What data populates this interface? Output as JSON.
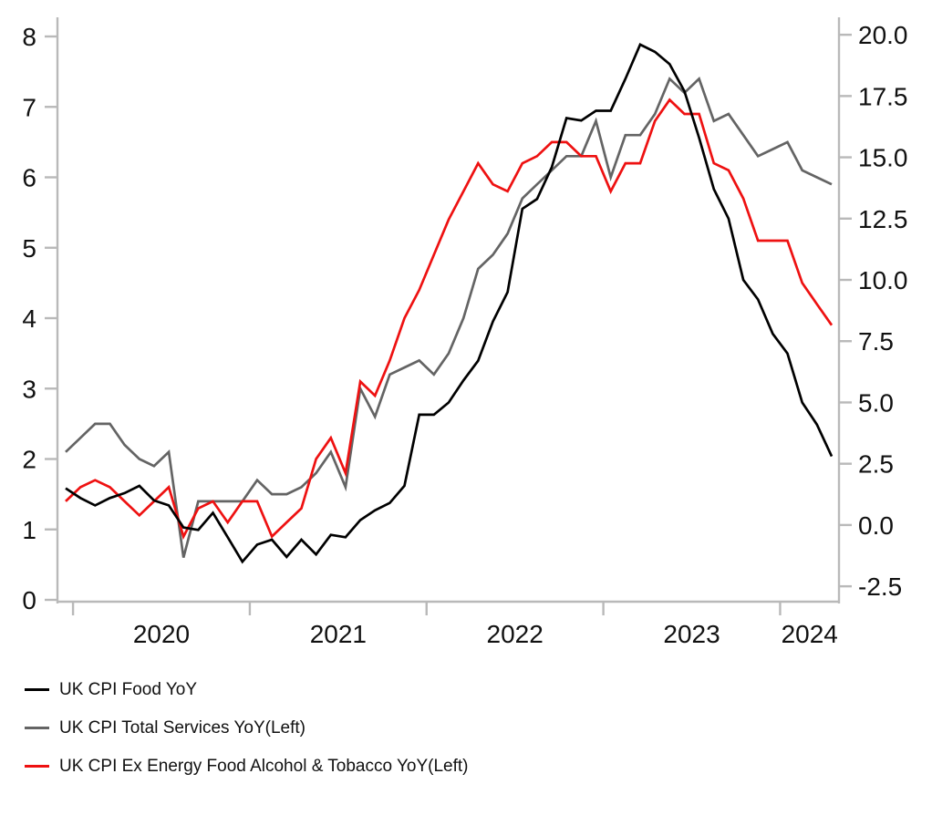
{
  "chart_data": {
    "type": "line",
    "title": "",
    "x_frequency": "monthly",
    "x_start": "2019-12",
    "x_end": "2024-04",
    "grid": "off",
    "legend_position": "bottom-left",
    "x_axis": {
      "tick_labels": [
        "2020",
        "2021",
        "2022",
        "2023",
        "2024"
      ]
    },
    "left_axis": {
      "min": 0,
      "max": 8,
      "tick_labels": [
        "0",
        "1",
        "2",
        "3",
        "4",
        "5",
        "6",
        "7",
        "8"
      ]
    },
    "right_axis": {
      "min": -2.5,
      "max": 20.0,
      "tick_labels": [
        "-2.5",
        "0.0",
        "2.5",
        "5.0",
        "7.5",
        "10.0",
        "12.5",
        "15.0",
        "17.5",
        "20.0"
      ]
    },
    "colors": {
      "axis": "#b9b9b9",
      "tick_text": "#111111",
      "background": "#ffffff"
    },
    "series": [
      {
        "name": "UK CPI Food YoY",
        "axis": "right",
        "color": "#000000",
        "values": [
          1.5,
          1.1,
          0.8,
          1.1,
          1.3,
          1.6,
          1.0,
          0.8,
          -0.1,
          -0.2,
          0.5,
          -0.5,
          -1.5,
          -0.8,
          -0.6,
          -1.3,
          -0.6,
          -1.2,
          -0.4,
          -0.5,
          0.2,
          0.6,
          0.9,
          1.6,
          4.5,
          4.5,
          5.0,
          5.9,
          6.7,
          8.3,
          9.5,
          12.9,
          13.3,
          14.6,
          16.6,
          16.5,
          16.9,
          16.9,
          18.2,
          19.6,
          19.3,
          18.8,
          17.7,
          15.8,
          13.7,
          12.5,
          10.0,
          9.2,
          7.8,
          7.0,
          5.0,
          4.1,
          2.8
        ]
      },
      {
        "name": "UK CPI Total Services YoY(Left)",
        "axis": "left",
        "color": "#646464",
        "values": [
          2.1,
          2.3,
          2.5,
          2.5,
          2.2,
          2.0,
          1.9,
          2.1,
          0.6,
          1.4,
          1.4,
          1.4,
          1.4,
          1.7,
          1.5,
          1.5,
          1.6,
          1.8,
          2.1,
          1.6,
          3.0,
          2.6,
          3.2,
          3.3,
          3.4,
          3.2,
          3.5,
          4.0,
          4.7,
          4.9,
          5.2,
          5.7,
          5.9,
          6.1,
          6.3,
          6.3,
          6.8,
          6.0,
          6.6,
          6.6,
          6.9,
          7.4,
          7.2,
          7.4,
          6.8,
          6.9,
          6.6,
          6.3,
          6.4,
          6.5,
          6.1,
          6.0,
          5.9
        ]
      },
      {
        "name": "UK CPI Ex Energy Food Alcohol & Tobacco YoY(Left)",
        "axis": "left",
        "color": "#ee1111",
        "values": [
          1.4,
          1.6,
          1.7,
          1.6,
          1.4,
          1.2,
          1.4,
          1.6,
          0.9,
          1.3,
          1.4,
          1.1,
          1.4,
          1.4,
          0.9,
          1.1,
          1.3,
          2.0,
          2.3,
          1.8,
          3.1,
          2.9,
          3.4,
          4.0,
          4.4,
          4.9,
          5.4,
          5.8,
          6.2,
          5.9,
          5.8,
          6.2,
          6.3,
          6.5,
          6.5,
          6.3,
          6.3,
          5.8,
          6.2,
          6.2,
          6.8,
          7.1,
          6.9,
          6.9,
          6.2,
          6.1,
          5.7,
          5.1,
          5.1,
          5.1,
          4.5,
          4.2,
          3.9
        ]
      }
    ]
  }
}
